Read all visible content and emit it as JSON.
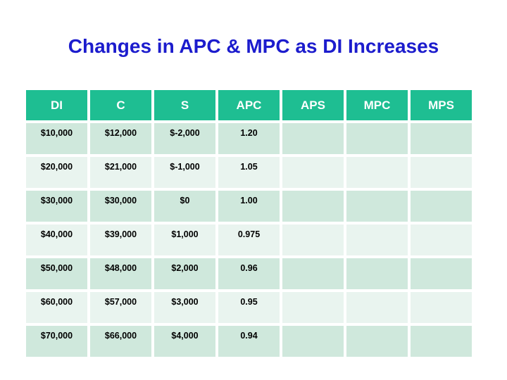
{
  "title": "Changes in APC & MPC as DI Increases",
  "colors": {
    "title": "#1c1ccd",
    "header_bg": "#1ebe92",
    "header_text": "#ffffff",
    "row_odd_bg": "#cfe8dc",
    "row_even_bg": "#e9f4ef",
    "apc_value": "#c62420",
    "cell_text": "#000000"
  },
  "table": {
    "headers": [
      "DI",
      "C",
      "S",
      "APC",
      "APS",
      "MPC",
      "MPS"
    ],
    "rows": [
      [
        "$10,000",
        "$12,000",
        "$-2,000",
        "1.20",
        "",
        "",
        ""
      ],
      [
        "$20,000",
        "$21,000",
        "$-1,000",
        "1.05",
        "",
        "",
        ""
      ],
      [
        "$30,000",
        "$30,000",
        "$0",
        "1.00",
        "",
        "",
        ""
      ],
      [
        "$40,000",
        "$39,000",
        "$1,000",
        "0.975",
        "",
        "",
        ""
      ],
      [
        "$50,000",
        "$48,000",
        "$2,000",
        "0.96",
        "",
        "",
        ""
      ],
      [
        "$60,000",
        "$57,000",
        "$3,000",
        "0.95",
        "",
        "",
        ""
      ],
      [
        "$70,000",
        "$66,000",
        "$4,000",
        "0.94",
        "",
        "",
        ""
      ]
    ]
  },
  "chart_data": {
    "type": "table",
    "title": "Changes in APC & MPC as DI Increases",
    "columns": [
      "DI",
      "C",
      "S",
      "APC",
      "APS",
      "MPC",
      "MPS"
    ],
    "rows": [
      {
        "DI": 10000,
        "C": 12000,
        "S": -2000,
        "APC": 1.2,
        "APS": null,
        "MPC": null,
        "MPS": null
      },
      {
        "DI": 20000,
        "C": 21000,
        "S": -1000,
        "APC": 1.05,
        "APS": null,
        "MPC": null,
        "MPS": null
      },
      {
        "DI": 30000,
        "C": 30000,
        "S": 0,
        "APC": 1.0,
        "APS": null,
        "MPC": null,
        "MPS": null
      },
      {
        "DI": 40000,
        "C": 39000,
        "S": 1000,
        "APC": 0.975,
        "APS": null,
        "MPC": null,
        "MPS": null
      },
      {
        "DI": 50000,
        "C": 48000,
        "S": 2000,
        "APC": 0.96,
        "APS": null,
        "MPC": null,
        "MPS": null
      },
      {
        "DI": 60000,
        "C": 57000,
        "S": 3000,
        "APC": 0.95,
        "APS": null,
        "MPC": null,
        "MPS": null
      },
      {
        "DI": 70000,
        "C": 66000,
        "S": 4000,
        "APC": 0.94,
        "APS": null,
        "MPC": null,
        "MPS": null
      }
    ],
    "notes": "APS, MPC and MPS columns are present but left blank in the image; APC values rendered in red"
  }
}
